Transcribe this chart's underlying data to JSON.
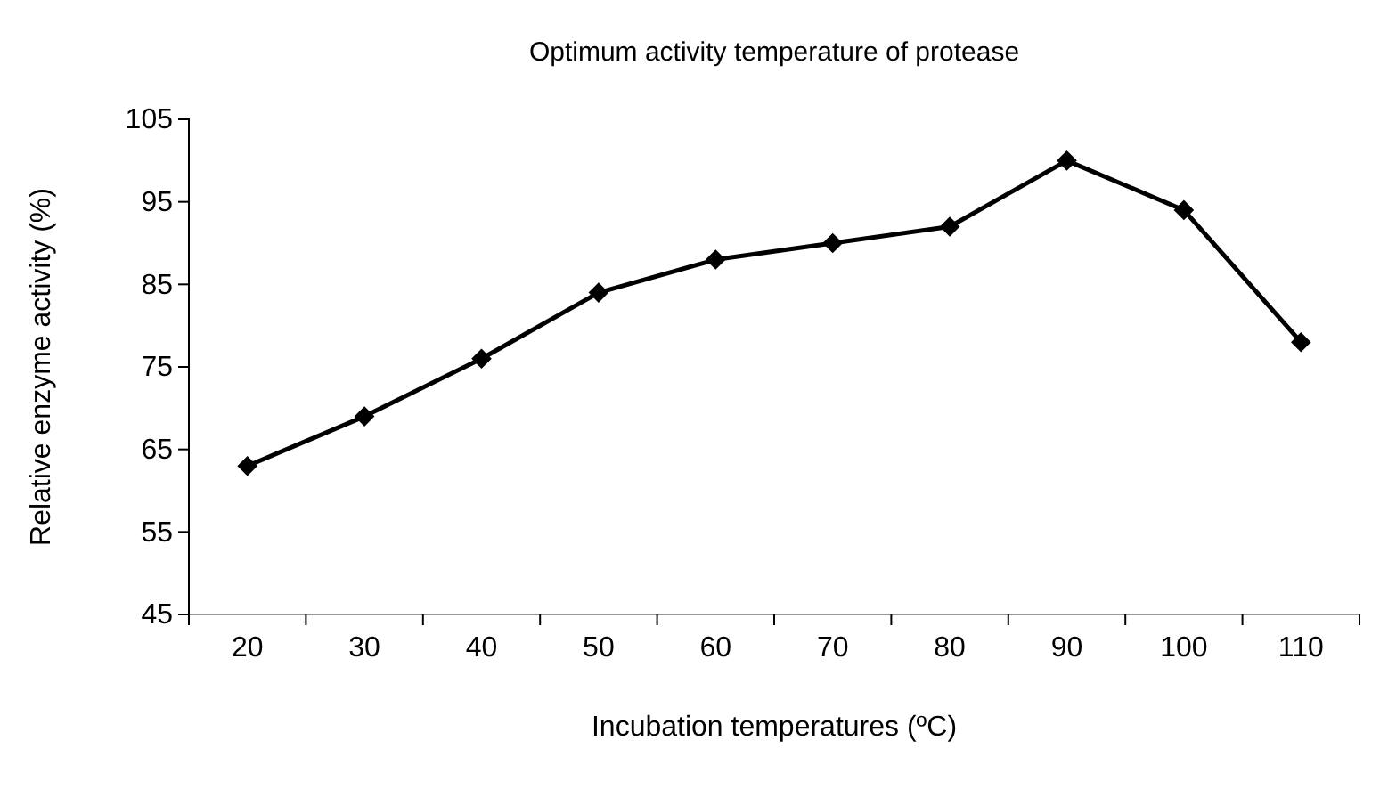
{
  "chart_data": {
    "type": "line",
    "title": "Optimum activity temperature of protease",
    "xlabel": "Incubation temperatures (ºC)",
    "ylabel": "Relative enzyme activity (%)",
    "categories": [
      "20",
      "30",
      "40",
      "50",
      "60",
      "70",
      "80",
      "90",
      "100",
      "110"
    ],
    "series": [
      {
        "color": "#000000",
        "values": [
          63,
          69,
          76,
          84,
          88,
          90,
          92,
          100,
          94,
          78
        ]
      }
    ],
    "ylim": [
      45,
      105
    ],
    "yticks": [
      45,
      55,
      65,
      75,
      85,
      95,
      105
    ],
    "grid": false,
    "marker": "diamond",
    "line_style": "solid"
  }
}
